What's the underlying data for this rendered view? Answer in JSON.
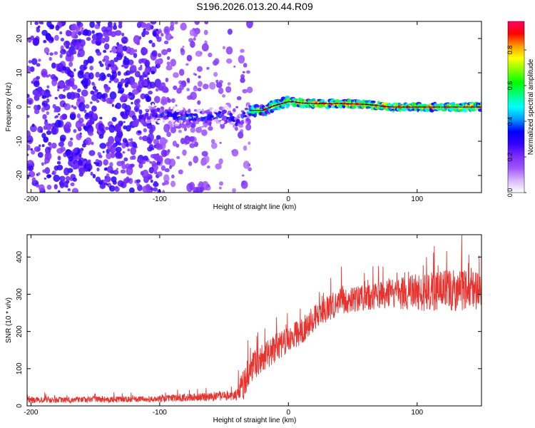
{
  "title": "S196.2026.013.20.44.R09",
  "colors": {
    "frame": "#000000",
    "snr_line": "#e8322e",
    "spectrogram_scatter": "#7b2cff",
    "background": "#ffffff"
  },
  "chart_data": [
    {
      "type": "heatmap",
      "name": "spectrogram",
      "xlabel": "Height of straight line (km)",
      "ylabel": "Frequency (Hz)",
      "xlim": [
        -203,
        150
      ],
      "ylim": [
        -25,
        25
      ],
      "xticks": [
        -200,
        -100,
        0,
        100
      ],
      "xtick_labels": [
        "-200",
        "-100",
        "0",
        "100"
      ],
      "yticks": [
        -20,
        -10,
        0,
        10,
        20
      ],
      "ytick_labels": [
        "-20",
        "-10",
        "0",
        "10",
        "20"
      ],
      "colorbar": {
        "label": "Normalized spectral amplitude",
        "range": [
          0,
          0.96
        ],
        "ticks": [
          0,
          0.2,
          0.4,
          0.6,
          0.8
        ],
        "tick_labels": [
          "0.0",
          "0.2",
          "0.4",
          "0.6",
          "0.8"
        ],
        "colormap_stops": [
          "#ffffff",
          "#d8b6ff",
          "#a055ff",
          "#7b2cff",
          "#3300ff",
          "#0000ff",
          "#0099ff",
          "#00ffff",
          "#00ff80",
          "#00ff00",
          "#80ff00",
          "#ffff00",
          "#ff9900",
          "#ff0000",
          "#ff0066"
        ]
      },
      "trace": {
        "x": [
          -100,
          -80,
          -60,
          -50,
          -45,
          -40,
          -35,
          -30,
          -20,
          -10,
          0,
          5,
          10,
          20,
          40,
          60,
          80,
          100,
          120,
          150
        ],
        "y": [
          -2,
          -3,
          -3,
          -2,
          -3,
          -5,
          -3,
          -1,
          -1,
          0.5,
          1.5,
          1.5,
          1.2,
          1,
          1,
          0.8,
          0,
          0,
          0,
          0
        ]
      }
    },
    {
      "type": "line",
      "name": "snr",
      "xlabel": "Height of straight line (km)",
      "ylabel": "SNR (10 * v/v)",
      "xlim": [
        -203,
        150
      ],
      "ylim": [
        0,
        460
      ],
      "xticks": [
        -200,
        -100,
        0,
        100
      ],
      "xtick_labels": [
        "-200",
        "-100",
        "0",
        "100"
      ],
      "yticks": [
        0,
        100,
        200,
        300,
        400
      ],
      "ytick_labels": [
        "0",
        "100",
        "200",
        "300",
        "400"
      ],
      "series": [
        {
          "name": "SNR",
          "x": [
            -203,
            -180,
            -160,
            -140,
            -120,
            -100,
            -80,
            -60,
            -40,
            -35,
            -30,
            -20,
            -10,
            0,
            10,
            20,
            30,
            40,
            60,
            80,
            100,
            120,
            150
          ],
          "y": [
            15,
            16,
            17,
            17,
            18,
            19,
            22,
            25,
            30,
            60,
            100,
            130,
            155,
            180,
            200,
            235,
            260,
            280,
            290,
            300,
            305,
            310,
            310
          ],
          "noise": [
            8,
            8,
            8,
            8,
            8,
            9,
            10,
            12,
            15,
            45,
            40,
            40,
            40,
            35,
            35,
            35,
            35,
            35,
            35,
            40,
            50,
            55,
            55
          ]
        }
      ]
    }
  ]
}
